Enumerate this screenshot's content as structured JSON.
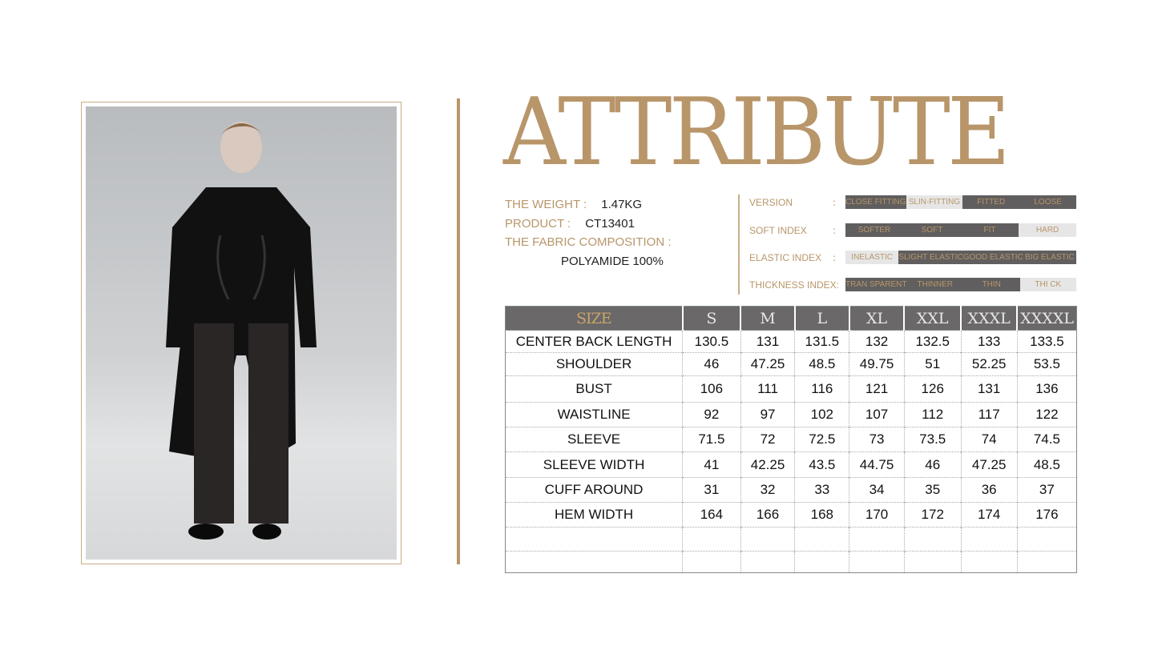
{
  "title": "ATTRIBUTE",
  "info": {
    "weight_label": "THE WEIGHT :",
    "weight": "1.47KG",
    "product_label": "PRODUCT :",
    "product": "CT13401",
    "fabric_label": "THE FABRIC COMPOSITION :",
    "fabric": "POLYAMIDE 100%"
  },
  "attributes": [
    {
      "label": "VERSION",
      "colon": ":",
      "segments": [
        "CLOSE FITTING",
        "SLIN-FITTING",
        "FITTED",
        "LOOSE"
      ],
      "selected": "SLIN-FITTING"
    },
    {
      "label": "SOFT INDEX",
      "colon": ":",
      "segments": [
        "SOFTER",
        "SOFT",
        "FIT",
        "HARD"
      ],
      "selected": "HARD"
    },
    {
      "label": "ELASTIC INDEX",
      "colon": ":",
      "segments": [
        "INELASTIC",
        "SLIGHT ELASTIC",
        "GOOD ELASTIC",
        "BIG ELASTIC"
      ],
      "selected": "INELASTIC"
    },
    {
      "label": "THICKNESS INDEX:",
      "colon": "",
      "segments": [
        "TRAN SPARENT",
        "THINNER",
        "THIN",
        "THI CK"
      ],
      "selected": "THI CK"
    }
  ],
  "size_table": {
    "headers": [
      "SIZE",
      "S",
      "M",
      "L",
      "XL",
      "XXL",
      "XXXL",
      "XXXXL"
    ],
    "rows": [
      [
        "CENTER  BACK  LENGTH",
        "130.5",
        "131",
        "131.5",
        "132",
        "132.5",
        "133",
        "133.5"
      ],
      [
        "SHOULDER",
        "46",
        "47.25",
        "48.5",
        "49.75",
        "51",
        "52.25",
        "53.5"
      ],
      [
        "BUST",
        "106",
        "111",
        "116",
        "121",
        "126",
        "131",
        "136"
      ],
      [
        "WAISTLINE",
        "92",
        "97",
        "102",
        "107",
        "112",
        "117",
        "122"
      ],
      [
        "SLEEVE",
        "71.5",
        "72",
        "72.5",
        "73",
        "73.5",
        "74",
        "74.5"
      ],
      [
        "SLEEVE  WIDTH",
        "41",
        "42.25",
        "43.5",
        "44.75",
        "46",
        "47.25",
        "48.5"
      ],
      [
        "CUFF  AROUND",
        "31",
        "32",
        "33",
        "34",
        "35",
        "36",
        "37"
      ],
      [
        "HEM  WIDTH",
        "164",
        "166",
        "168",
        "170",
        "172",
        "174",
        "176"
      ],
      [
        "",
        "",
        "",
        "",
        "",
        "",
        "",
        ""
      ],
      [
        "",
        "",
        "",
        "",
        "",
        "",
        "",
        ""
      ]
    ]
  },
  "colors": {
    "gold": "#b8966a",
    "dark_bar": "#605e5e",
    "selected_bar": "#e6e6e6",
    "table_header": "#6a6868"
  }
}
